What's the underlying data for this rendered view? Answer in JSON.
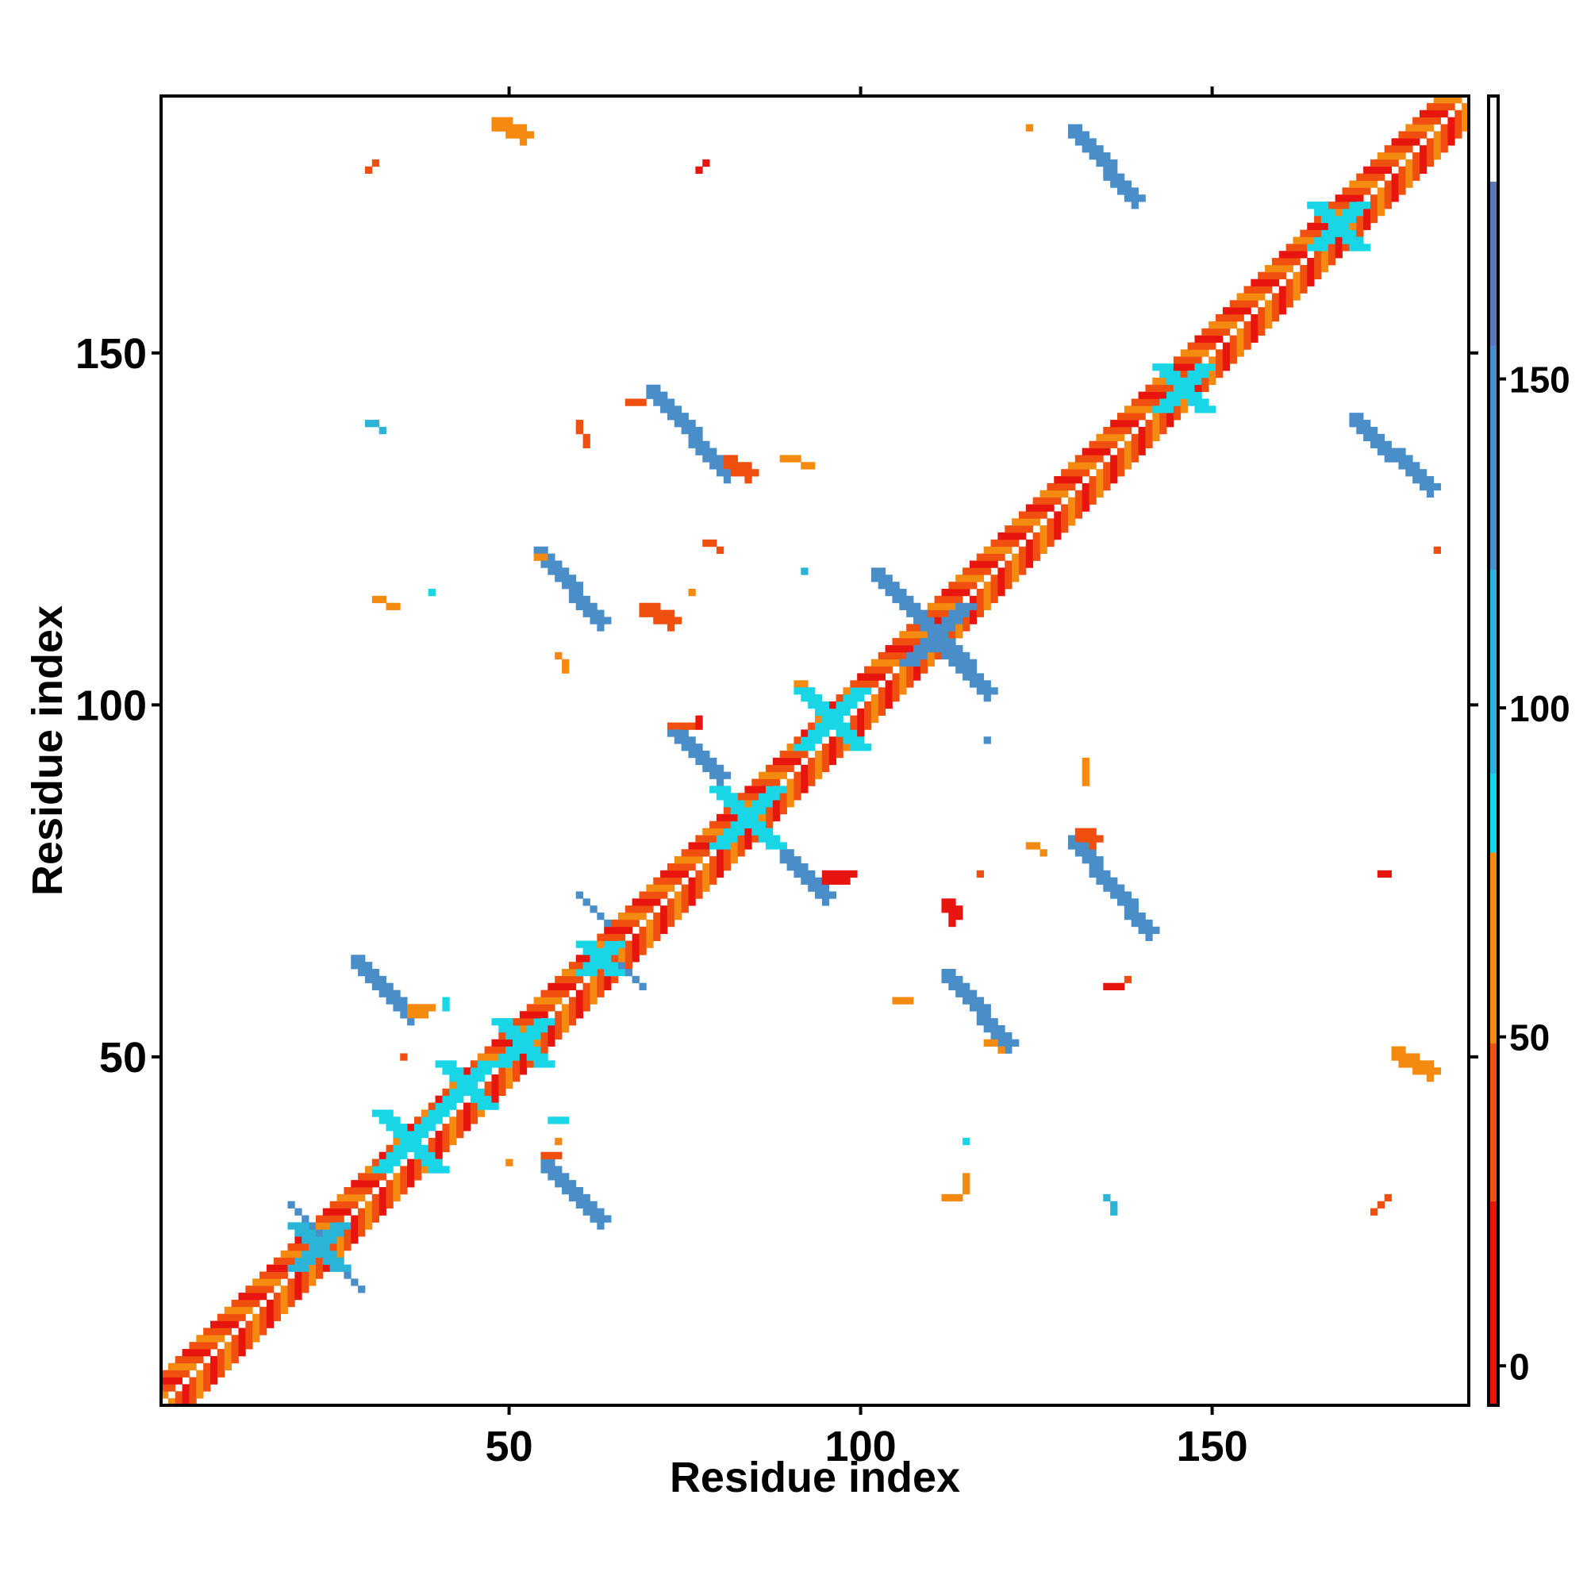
{
  "chart_data": {
    "type": "heatmap",
    "title": "",
    "xlabel": "Residue index",
    "ylabel": "Residue index",
    "xlim": [
      1,
      186
    ],
    "ylim": [
      1,
      186
    ],
    "xticks": [
      50,
      100,
      150
    ],
    "yticks": [
      50,
      100,
      150
    ],
    "grid": false,
    "colorbar": {
      "placement": "right",
      "range": [
        -6,
        193
      ],
      "ticks": [
        0,
        50,
        100,
        150
      ],
      "bands": [
        {
          "from": -6,
          "to": 25,
          "color": "#e8150f"
        },
        {
          "from": 25,
          "to": 49,
          "color": "#f04f0f"
        },
        {
          "from": 49,
          "to": 78,
          "color": "#f58a10"
        },
        {
          "from": 78,
          "to": 90,
          "color": "#19d6e6"
        },
        {
          "from": 90,
          "to": 121,
          "color": "#2ab4d8"
        },
        {
          "from": 121,
          "to": 155,
          "color": "#4a8ec9"
        },
        {
          "from": 155,
          "to": 180,
          "color": "#5a78b6"
        },
        {
          "from": 180,
          "to": 193,
          "color": "#ffffff"
        }
      ]
    },
    "value_classes": {
      "r": {
        "color": "#e8150f",
        "value": 10
      },
      "o": {
        "color": "#f04f0f",
        "value": 37
      },
      "y": {
        "color": "#f58a10",
        "value": 63
      },
      "c": {
        "color": "#19d6e6",
        "value": 85
      },
      "b": {
        "color": "#2ab4d8",
        "value": 105
      },
      "s": {
        "color": "#4a8ec9",
        "value": 140
      }
    },
    "diagonal": {
      "from": 1,
      "to": 186
    },
    "contact_regions": [
      {
        "kind": "strand",
        "x1": 48,
        "y1": 183,
        "x2": 52,
        "y2": 181,
        "w": 2,
        "c": "y"
      },
      {
        "kind": "strand",
        "x1": 30,
        "y1": 176,
        "x2": 31,
        "y2": 177,
        "w": 1,
        "c": "o"
      },
      {
        "kind": "strand",
        "x1": 77,
        "y1": 176,
        "x2": 78,
        "y2": 177,
        "w": 1,
        "c": "r"
      },
      {
        "kind": "strand",
        "x1": 124,
        "y1": 182,
        "x2": 124,
        "y2": 182,
        "w": 1,
        "c": "y"
      },
      {
        "kind": "strand",
        "x1": 130,
        "y1": 182,
        "x2": 139,
        "y2": 172,
        "w": 2,
        "c": "s"
      },
      {
        "kind": "strand",
        "x1": 170,
        "y1": 141,
        "x2": 181,
        "y2": 131,
        "w": 2,
        "c": "s"
      },
      {
        "kind": "strand",
        "x1": 182,
        "y1": 122,
        "x2": 182,
        "y2": 122,
        "w": 1,
        "c": "o"
      },
      {
        "kind": "strand",
        "x1": 70,
        "y1": 145,
        "x2": 81,
        "y2": 133,
        "w": 2,
        "c": "s"
      },
      {
        "kind": "strand",
        "x1": 81,
        "y1": 135,
        "x2": 84,
        "y2": 133,
        "w": 2,
        "c": "o"
      },
      {
        "kind": "strand",
        "x1": 89,
        "y1": 135,
        "x2": 93,
        "y2": 134,
        "w": 1,
        "c": "y"
      },
      {
        "kind": "strand",
        "x1": 67,
        "y1": 143,
        "x2": 69,
        "y2": 143,
        "w": 1,
        "c": "o"
      },
      {
        "kind": "strand",
        "x1": 60,
        "y1": 140,
        "x2": 61,
        "y2": 137,
        "w": 1,
        "c": "o"
      },
      {
        "kind": "strand",
        "x1": 30,
        "y1": 140,
        "x2": 32,
        "y2": 139,
        "w": 1,
        "c": "b"
      },
      {
        "kind": "strand",
        "x1": 54,
        "y1": 122,
        "x2": 63,
        "y2": 112,
        "w": 2,
        "c": "s"
      },
      {
        "kind": "strand",
        "x1": 54,
        "y1": 121,
        "x2": 55,
        "y2": 121,
        "w": 1,
        "c": "y"
      },
      {
        "kind": "strand",
        "x1": 69,
        "y1": 114,
        "x2": 73,
        "y2": 112,
        "w": 2,
        "c": "o"
      },
      {
        "kind": "strand",
        "x1": 78,
        "y1": 123,
        "x2": 80,
        "y2": 122,
        "w": 1,
        "c": "o"
      },
      {
        "kind": "strand",
        "x1": 76,
        "y1": 116,
        "x2": 76,
        "y2": 116,
        "w": 1,
        "c": "y"
      },
      {
        "kind": "strand",
        "x1": 31,
        "y1": 115,
        "x2": 34,
        "y2": 114,
        "w": 1,
        "c": "y"
      },
      {
        "kind": "strand",
        "x1": 39,
        "y1": 116,
        "x2": 39,
        "y2": 116,
        "w": 1,
        "c": "c"
      },
      {
        "kind": "strand",
        "x1": 92,
        "y1": 119,
        "x2": 92,
        "y2": 119,
        "w": 1,
        "c": "b"
      },
      {
        "kind": "strand",
        "x1": 57,
        "y1": 107,
        "x2": 58,
        "y2": 105,
        "w": 1,
        "c": "y"
      },
      {
        "kind": "strand",
        "x1": 102,
        "y1": 119,
        "x2": 118,
        "y2": 102,
        "w": 2,
        "c": "s"
      },
      {
        "kind": "strand",
        "x1": 73,
        "y1": 97,
        "x2": 80,
        "y2": 90,
        "w": 2,
        "c": "s"
      },
      {
        "kind": "strand",
        "x1": 73,
        "y1": 97,
        "x2": 76,
        "y2": 97,
        "w": 1,
        "c": "o"
      },
      {
        "kind": "strand",
        "x1": 77,
        "y1": 98,
        "x2": 77,
        "y2": 97,
        "w": 1,
        "c": "r"
      },
      {
        "kind": "strand",
        "x1": 91,
        "y1": 103,
        "x2": 92,
        "y2": 103,
        "w": 1,
        "c": "y"
      },
      {
        "kind": "strand",
        "x1": 89,
        "y1": 79,
        "x2": 95,
        "y2": 73,
        "w": 2,
        "c": "s"
      },
      {
        "kind": "strand",
        "x1": 95,
        "y1": 76,
        "x2": 98,
        "y2": 76,
        "w": 2,
        "c": "r"
      },
      {
        "kind": "strand",
        "x1": 130,
        "y1": 81,
        "x2": 141,
        "y2": 68,
        "w": 2,
        "c": "s"
      },
      {
        "kind": "strand",
        "x1": 131,
        "y1": 82,
        "x2": 133,
        "y2": 81,
        "w": 2,
        "c": "o"
      },
      {
        "kind": "strand",
        "x1": 132,
        "y1": 92,
        "x2": 132,
        "y2": 89,
        "w": 1,
        "c": "y"
      },
      {
        "kind": "strand",
        "x1": 124,
        "y1": 80,
        "x2": 126,
        "y2": 79,
        "w": 1,
        "c": "y"
      },
      {
        "kind": "strand",
        "x1": 117,
        "y1": 76,
        "x2": 117,
        "y2": 76,
        "w": 1,
        "c": "o"
      },
      {
        "kind": "strand",
        "x1": 112,
        "y1": 72,
        "x2": 113,
        "y2": 70,
        "w": 2,
        "c": "r"
      },
      {
        "kind": "strand",
        "x1": 112,
        "y1": 62,
        "x2": 121,
        "y2": 52,
        "w": 2,
        "c": "s"
      },
      {
        "kind": "strand",
        "x1": 118,
        "y1": 52,
        "x2": 120,
        "y2": 51,
        "w": 1,
        "c": "y"
      },
      {
        "kind": "strand",
        "x1": 105,
        "y1": 58,
        "x2": 107,
        "y2": 58,
        "w": 1,
        "c": "y"
      },
      {
        "kind": "strand",
        "x1": 135,
        "y1": 60,
        "x2": 137,
        "y2": 60,
        "w": 1,
        "c": "r"
      },
      {
        "kind": "strand",
        "x1": 138,
        "y1": 61,
        "x2": 138,
        "y2": 61,
        "w": 1,
        "c": "o"
      },
      {
        "kind": "strand",
        "x1": 174,
        "y1": 76,
        "x2": 175,
        "y2": 76,
        "w": 1,
        "c": "r"
      },
      {
        "kind": "strand",
        "x1": 176,
        "y1": 51,
        "x2": 181,
        "y2": 48,
        "w": 2,
        "c": "y"
      },
      {
        "kind": "strand",
        "x1": 28,
        "y1": 64,
        "x2": 36,
        "y2": 56,
        "w": 2,
        "c": "s"
      },
      {
        "kind": "strand",
        "x1": 36,
        "y1": 57,
        "x2": 38,
        "y2": 57,
        "w": 2,
        "c": "y"
      },
      {
        "kind": "strand",
        "x1": 41,
        "y1": 58,
        "x2": 41,
        "y2": 57,
        "w": 1,
        "c": "c"
      },
      {
        "kind": "strand",
        "x1": 35,
        "y1": 50,
        "x2": 35,
        "y2": 50,
        "w": 1,
        "c": "o"
      },
      {
        "kind": "strand",
        "x1": 55,
        "y1": 35,
        "x2": 63,
        "y2": 27,
        "w": 2,
        "c": "s"
      },
      {
        "kind": "strand",
        "x1": 55,
        "y1": 36,
        "x2": 57,
        "y2": 36,
        "w": 1,
        "c": "o"
      },
      {
        "kind": "strand",
        "x1": 56,
        "y1": 41,
        "x2": 58,
        "y2": 41,
        "w": 1,
        "c": "c"
      },
      {
        "kind": "strand",
        "x1": 57,
        "y1": 38,
        "x2": 57,
        "y2": 38,
        "w": 1,
        "c": "y"
      },
      {
        "kind": "strand",
        "x1": 50,
        "y1": 35,
        "x2": 50,
        "y2": 35,
        "w": 1,
        "c": "y"
      },
      {
        "kind": "strand",
        "x1": 115,
        "y1": 33,
        "x2": 115,
        "y2": 31,
        "w": 1,
        "c": "y"
      },
      {
        "kind": "strand",
        "x1": 112,
        "y1": 30,
        "x2": 114,
        "y2": 30,
        "w": 1,
        "c": "y"
      },
      {
        "kind": "strand",
        "x1": 115,
        "y1": 38,
        "x2": 115,
        "y2": 38,
        "w": 1,
        "c": "c"
      },
      {
        "kind": "strand",
        "x1": 135,
        "y1": 30,
        "x2": 136,
        "y2": 28,
        "w": 1,
        "c": "b"
      },
      {
        "kind": "strand",
        "x1": 173,
        "y1": 28,
        "x2": 175,
        "y2": 30,
        "w": 1,
        "c": "o"
      },
      {
        "kind": "strand",
        "x1": 60,
        "y1": 73,
        "x2": 64,
        "y2": 69,
        "w": 1,
        "c": "s"
      },
      {
        "kind": "strand",
        "x1": 66,
        "y1": 63,
        "x2": 69,
        "y2": 60,
        "w": 1,
        "c": "s"
      },
      {
        "kind": "strand",
        "x1": 19,
        "y1": 29,
        "x2": 23,
        "y2": 25,
        "w": 1,
        "c": "s"
      },
      {
        "kind": "strand",
        "x1": 26,
        "y1": 20,
        "x2": 29,
        "y2": 17,
        "w": 1,
        "c": "s"
      },
      {
        "kind": "strand",
        "x1": 118,
        "y1": 95,
        "x2": 118,
        "y2": 95,
        "w": 1,
        "c": "s"
      },
      {
        "kind": "cross",
        "cx": 36,
        "cy": 38,
        "r": 4,
        "c": "c"
      },
      {
        "kind": "cross",
        "cx": 44,
        "cy": 46,
        "r": 3,
        "c": "c"
      },
      {
        "kind": "cross",
        "cx": 52,
        "cy": 52,
        "r": 3,
        "c": "c"
      },
      {
        "kind": "cross",
        "cx": 23,
        "cy": 23,
        "r": 3,
        "c": "b"
      },
      {
        "kind": "cross",
        "cx": 84,
        "cy": 84,
        "r": 4,
        "c": "c"
      },
      {
        "kind": "cross",
        "cx": 96,
        "cy": 98,
        "r": 4,
        "c": "c"
      },
      {
        "kind": "cross",
        "cx": 111,
        "cy": 110,
        "r": 4,
        "c": "s"
      },
      {
        "kind": "cross",
        "cx": 146,
        "cy": 145,
        "r": 3,
        "c": "c"
      },
      {
        "kind": "cross",
        "cx": 168,
        "cy": 168,
        "r": 3,
        "c": "c"
      },
      {
        "kind": "cross",
        "cx": 63,
        "cy": 64,
        "r": 2,
        "c": "c"
      }
    ]
  }
}
